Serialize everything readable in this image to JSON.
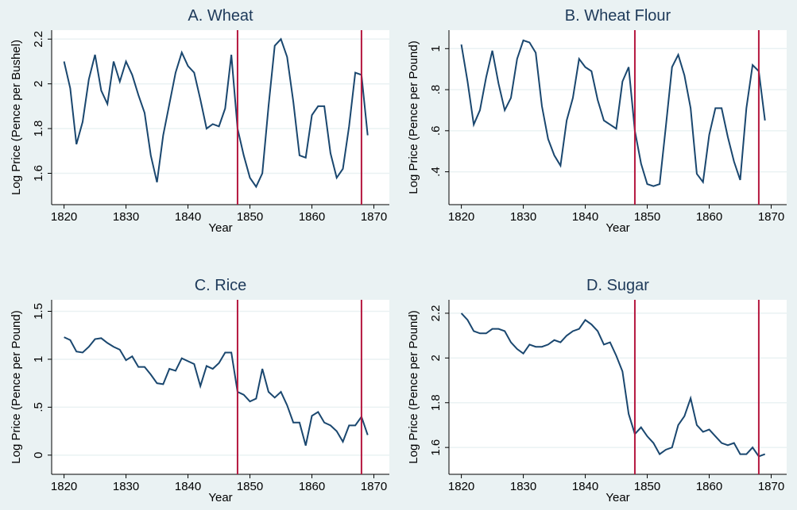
{
  "chart_data": [
    {
      "type": "line",
      "title": "A. Wheat",
      "xlabel": "Year",
      "ylabel": "Log Price (Pence per Bushel)",
      "x": [
        1820,
        1821,
        1822,
        1823,
        1824,
        1825,
        1826,
        1827,
        1828,
        1829,
        1830,
        1831,
        1832,
        1833,
        1834,
        1835,
        1836,
        1837,
        1838,
        1839,
        1840,
        1841,
        1842,
        1843,
        1844,
        1845,
        1846,
        1847,
        1848,
        1849,
        1850,
        1851,
        1852,
        1853,
        1854,
        1855,
        1856,
        1857,
        1858,
        1859,
        1860,
        1861,
        1862,
        1863,
        1864,
        1865,
        1866,
        1867,
        1868,
        1869
      ],
      "values": [
        2.1,
        1.98,
        1.73,
        1.83,
        2.02,
        2.13,
        1.97,
        1.91,
        2.1,
        2.01,
        2.1,
        2.04,
        1.95,
        1.87,
        1.68,
        1.56,
        1.77,
        1.91,
        2.05,
        2.14,
        2.08,
        2.05,
        1.93,
        1.8,
        1.82,
        1.81,
        1.89,
        2.13,
        1.8,
        1.68,
        1.58,
        1.54,
        1.6,
        1.9,
        2.17,
        2.2,
        2.12,
        1.92,
        1.68,
        1.67,
        1.86,
        1.9,
        1.9,
        1.69,
        1.58,
        1.62,
        1.81,
        2.05,
        2.04,
        1.77
      ],
      "color": "#1a476f",
      "vlines": [
        1848,
        1868
      ],
      "vline_color": "#b5173f",
      "xlim": [
        1818,
        1872.5
      ],
      "xticks": [
        1820,
        1830,
        1840,
        1850,
        1860,
        1870
      ],
      "ylim": [
        1.46,
        2.24
      ],
      "yticks": [
        1.6,
        1.8,
        2,
        2.2
      ],
      "grid": true
    },
    {
      "type": "line",
      "title": "B. Wheat Flour",
      "xlabel": "Year",
      "ylabel": "Log Price (Pence per Pound)",
      "x": [
        1820,
        1821,
        1822,
        1823,
        1824,
        1825,
        1826,
        1827,
        1828,
        1829,
        1830,
        1831,
        1832,
        1833,
        1834,
        1835,
        1836,
        1837,
        1838,
        1839,
        1840,
        1841,
        1842,
        1843,
        1844,
        1845,
        1846,
        1847,
        1848,
        1849,
        1850,
        1851,
        1852,
        1853,
        1854,
        1855,
        1856,
        1857,
        1858,
        1859,
        1860,
        1861,
        1862,
        1863,
        1864,
        1865,
        1866,
        1867,
        1868,
        1869
      ],
      "values": [
        1.02,
        0.84,
        0.63,
        0.7,
        0.86,
        0.99,
        0.83,
        0.7,
        0.76,
        0.95,
        1.04,
        1.03,
        0.98,
        0.72,
        0.56,
        0.48,
        0.43,
        0.65,
        0.76,
        0.95,
        0.91,
        0.89,
        0.75,
        0.65,
        0.63,
        0.61,
        0.84,
        0.91,
        0.6,
        0.44,
        0.34,
        0.33,
        0.34,
        0.62,
        0.91,
        0.97,
        0.87,
        0.71,
        0.39,
        0.35,
        0.58,
        0.71,
        0.71,
        0.57,
        0.45,
        0.36,
        0.71,
        0.92,
        0.89,
        0.65
      ],
      "color": "#1a476f",
      "vlines": [
        1848,
        1868
      ],
      "vline_color": "#b5173f",
      "xlim": [
        1818,
        1872.5
      ],
      "xticks": [
        1820,
        1830,
        1840,
        1850,
        1860,
        1870
      ],
      "ylim": [
        0.24,
        1.09
      ],
      "yticks": [
        {
          "value": 0.4,
          "label": ".4"
        },
        {
          "value": 0.6,
          "label": ".6"
        },
        {
          "value": 0.8,
          "label": ".8"
        },
        1
      ],
      "grid": true
    },
    {
      "type": "line",
      "title": "C. Rice",
      "xlabel": "Year",
      "ylabel": "Log Price (Pence per Pound)",
      "x": [
        1820,
        1821,
        1822,
        1823,
        1824,
        1825,
        1826,
        1827,
        1828,
        1829,
        1830,
        1831,
        1832,
        1833,
        1834,
        1835,
        1836,
        1837,
        1838,
        1839,
        1840,
        1841,
        1842,
        1843,
        1844,
        1845,
        1846,
        1847,
        1848,
        1849,
        1850,
        1851,
        1852,
        1853,
        1854,
        1855,
        1856,
        1857,
        1858,
        1859,
        1860,
        1861,
        1862,
        1863,
        1864,
        1865,
        1866,
        1867,
        1868,
        1869
      ],
      "values": [
        1.23,
        1.2,
        1.08,
        1.07,
        1.13,
        1.21,
        1.22,
        1.17,
        1.13,
        1.1,
        0.99,
        1.03,
        0.92,
        0.92,
        0.84,
        0.75,
        0.74,
        0.9,
        0.88,
        1.01,
        0.98,
        0.95,
        0.72,
        0.93,
        0.9,
        0.96,
        1.07,
        1.07,
        0.66,
        0.63,
        0.56,
        0.59,
        0.9,
        0.66,
        0.6,
        0.66,
        0.52,
        0.34,
        0.34,
        0.1,
        0.41,
        0.45,
        0.34,
        0.31,
        0.25,
        0.14,
        0.31,
        0.31,
        0.4,
        0.21
      ],
      "color": "#1a476f",
      "vlines": [
        1848,
        1868
      ],
      "vline_color": "#b5173f",
      "xlim": [
        1818,
        1872.5
      ],
      "xticks": [
        1820,
        1830,
        1840,
        1850,
        1860,
        1870
      ],
      "ylim": [
        -0.2,
        1.62
      ],
      "yticks": [
        0,
        {
          "value": 0.5,
          "label": ".5"
        },
        1,
        1.5
      ],
      "grid": true
    },
    {
      "type": "line",
      "title": "D. Sugar",
      "xlabel": "Year",
      "ylabel": "Log Price (Pence per Pound)",
      "x": [
        1820,
        1821,
        1822,
        1823,
        1824,
        1825,
        1826,
        1827,
        1828,
        1829,
        1830,
        1831,
        1832,
        1833,
        1834,
        1835,
        1836,
        1837,
        1838,
        1839,
        1840,
        1841,
        1842,
        1843,
        1844,
        1845,
        1846,
        1847,
        1848,
        1849,
        1850,
        1851,
        1852,
        1853,
        1854,
        1855,
        1856,
        1857,
        1858,
        1859,
        1860,
        1861,
        1862,
        1863,
        1864,
        1865,
        1866,
        1867,
        1868,
        1869
      ],
      "values": [
        2.2,
        2.17,
        2.12,
        2.11,
        2.11,
        2.13,
        2.13,
        2.12,
        2.07,
        2.04,
        2.02,
        2.06,
        2.05,
        2.05,
        2.06,
        2.08,
        2.07,
        2.1,
        2.12,
        2.13,
        2.17,
        2.15,
        2.12,
        2.06,
        2.07,
        2.01,
        1.94,
        1.75,
        1.66,
        1.69,
        1.65,
        1.62,
        1.57,
        1.59,
        1.6,
        1.7,
        1.74,
        1.82,
        1.7,
        1.67,
        1.68,
        1.65,
        1.62,
        1.61,
        1.62,
        1.57,
        1.57,
        1.6,
        1.56,
        1.57
      ],
      "color": "#1a476f",
      "vlines": [
        1848,
        1868
      ],
      "vline_color": "#b5173f",
      "xlim": [
        1818,
        1872.5
      ],
      "xticks": [
        1820,
        1830,
        1840,
        1850,
        1860,
        1870
      ],
      "ylim": [
        1.48,
        2.26
      ],
      "yticks": [
        1.6,
        1.8,
        2,
        2.2
      ],
      "grid": true
    }
  ]
}
